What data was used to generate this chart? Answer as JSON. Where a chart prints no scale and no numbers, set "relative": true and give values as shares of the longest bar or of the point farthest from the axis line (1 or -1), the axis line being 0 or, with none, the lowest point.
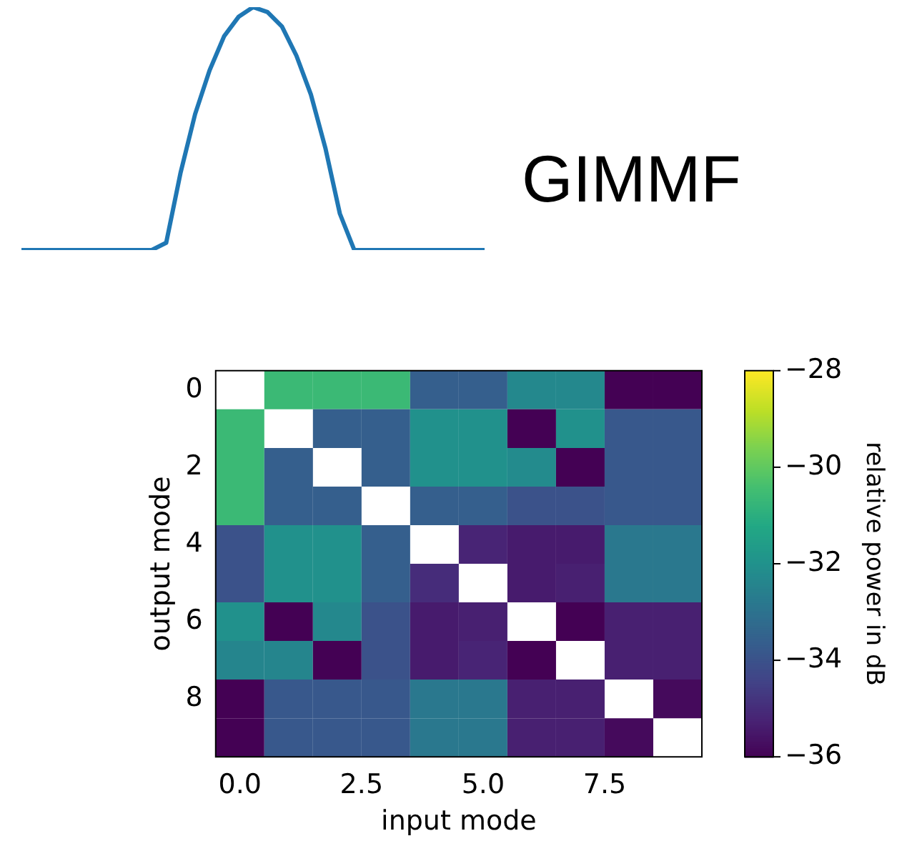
{
  "chart_data": [
    {
      "type": "line",
      "title": "GIMMF",
      "relative": true,
      "categories": [
        null,
        null,
        null,
        null,
        null,
        null,
        null,
        null,
        null,
        null,
        null,
        null,
        null,
        null,
        null,
        null,
        null,
        null,
        null,
        null,
        null,
        null,
        null,
        null,
        null,
        null,
        null,
        null,
        null,
        null,
        null,
        null,
        null
      ],
      "series": [
        {
          "color": "#1f77b4",
          "values": [
            0,
            0,
            0,
            0,
            0,
            0,
            0,
            0,
            0,
            0,
            0.03,
            0.32,
            0.56,
            0.74,
            0.88,
            0.96,
            1,
            0.98,
            0.92,
            0.8,
            0.64,
            0.42,
            0.15,
            0,
            0,
            0,
            0,
            0,
            0,
            0,
            0,
            0,
            0
          ]
        }
      ]
    },
    {
      "type": "heatmap",
      "xlabel": "input mode",
      "ylabel": "output mode",
      "clabel": "relative power in dB",
      "xlim": [
        -0.5,
        9.5
      ],
      "xticks": [
        {
          "value": 0,
          "label": "0.0"
        },
        {
          "value": 2.5,
          "label": "2.5"
        },
        {
          "value": 5,
          "label": "5.0"
        },
        {
          "value": 7.5,
          "label": "7.5"
        }
      ],
      "ylim": [
        9.5,
        -0.5
      ],
      "yticks": [
        0,
        2,
        4,
        6,
        8
      ],
      "clim": [
        -36,
        -28
      ],
      "cticks": [
        {
          "value": -36,
          "label": "−36"
        },
        {
          "value": -34,
          "label": "−34"
        },
        {
          "value": -32,
          "label": "−32"
        },
        {
          "value": -30,
          "label": "−30"
        },
        {
          "value": -28,
          "label": "−28"
        }
      ],
      "cells": [
        [
          null,
          -30.6,
          -30.6,
          -30.6,
          -33.6,
          -33.6,
          -32.3,
          -32.3,
          -36,
          -36
        ],
        [
          -30.6,
          null,
          -33.6,
          -33.6,
          -32,
          -32,
          -36,
          -32,
          -33.8,
          -33.8
        ],
        [
          -30.6,
          -33.6,
          null,
          -33.6,
          -32,
          -32,
          -32.2,
          -36,
          -33.8,
          -33.8
        ],
        [
          -30.6,
          -33.6,
          -33.6,
          null,
          -33.6,
          -33.6,
          -34,
          -34,
          -33.8,
          -33.8
        ],
        [
          -34,
          -32,
          -32,
          -33.6,
          null,
          -35.2,
          -35.4,
          -35.4,
          -32.8,
          -32.8
        ],
        [
          -34,
          -32,
          -32,
          -33.6,
          -35,
          null,
          -35.4,
          -35.3,
          -32.8,
          -32.8
        ],
        [
          -32,
          -36,
          -32.3,
          -34,
          -35.4,
          -35.3,
          null,
          -36,
          -35.3,
          -35.3
        ],
        [
          -32.4,
          -32.4,
          -36,
          -34,
          -35.4,
          -35.2,
          -36,
          null,
          -35.3,
          -35.3
        ],
        [
          -36,
          -33.8,
          -33.8,
          -33.8,
          -32.8,
          -32.8,
          -35.3,
          -35.3,
          null,
          -35.8
        ],
        [
          -36,
          -33.8,
          -33.8,
          -33.8,
          -32.8,
          -32.8,
          -35.3,
          -35.3,
          -35.8,
          null
        ]
      ]
    }
  ]
}
